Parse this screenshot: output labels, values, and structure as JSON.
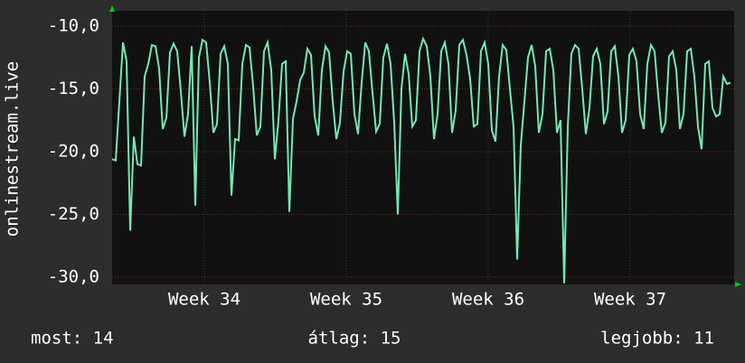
{
  "chart_data": {
    "type": "line",
    "y_label": "onlinestream.live",
    "series": [
      {
        "name": "onlinestream.live",
        "color": "#74e8b4",
        "values": [
          -20.6,
          -20.7,
          -16.0,
          -11.3,
          -12.8,
          -26.3,
          -18.8,
          -21.0,
          -21.1,
          -14.0,
          -13.0,
          -11.5,
          -11.6,
          -13.4,
          -18.2,
          -17.3,
          -12.1,
          -11.4,
          -12.0,
          -15.2,
          -18.8,
          -17.0,
          -11.6,
          -24.3,
          -12.5,
          -11.1,
          -11.3,
          -14.5,
          -18.5,
          -17.8,
          -12.2,
          -11.6,
          -13.0,
          -23.5,
          -19.0,
          -19.1,
          -13.0,
          -11.5,
          -11.7,
          -14.8,
          -18.7,
          -18.0,
          -12.0,
          -11.3,
          -13.5,
          -20.6,
          -17.5,
          -13.0,
          -12.8,
          -24.8,
          -17.4,
          -16.0,
          -14.3,
          -13.7,
          -11.8,
          -12.3,
          -17.2,
          -18.7,
          -13.5,
          -11.6,
          -12.1,
          -16.0,
          -19.0,
          -17.7,
          -13.6,
          -12.0,
          -12.2,
          -17.0,
          -18.6,
          -14.5,
          -11.3,
          -12.0,
          -15.3,
          -18.4,
          -17.8,
          -12.5,
          -11.4,
          -13.0,
          -17.7,
          -25.0,
          -15.0,
          -12.2,
          -13.8,
          -18.0,
          -17.5,
          -12.0,
          -11.0,
          -11.6,
          -14.0,
          -19.0,
          -17.0,
          -12.0,
          -11.3,
          -13.0,
          -18.5,
          -16.7,
          -11.5,
          -11.1,
          -12.3,
          -14.2,
          -18.0,
          -17.8,
          -12.0,
          -11.3,
          -13.0,
          -18.3,
          -19.2,
          -14.0,
          -11.5,
          -11.9,
          -15.0,
          -18.0,
          -28.6,
          -19.5,
          -16.0,
          -12.5,
          -11.5,
          -13.2,
          -18.5,
          -17.0,
          -12.0,
          -11.8,
          -13.5,
          -18.5,
          -17.5,
          -30.5,
          -18.0,
          -12.2,
          -11.5,
          -11.8,
          -15.0,
          -18.6,
          -16.5,
          -12.4,
          -11.8,
          -13.0,
          -17.8,
          -16.8,
          -12.0,
          -11.6,
          -14.0,
          -18.5,
          -17.5,
          -12.3,
          -11.8,
          -12.8,
          -17.0,
          -18.2,
          -13.0,
          -11.5,
          -12.0,
          -15.5,
          -18.5,
          -17.7,
          -12.4,
          -12.0,
          -13.5,
          -18.2,
          -17.0,
          -12.0,
          -11.8,
          -14.0,
          -18.0,
          -19.8,
          -13.0,
          -12.8,
          -16.5,
          -17.2,
          -17.0,
          -14.0,
          -14.6,
          -14.5
        ]
      }
    ],
    "xlim": [
      0,
      172
    ],
    "xticks": [
      {
        "value": 25.5,
        "label": "Week 34"
      },
      {
        "value": 64.75,
        "label": "Week 35"
      },
      {
        "value": 104,
        "label": "Week 36"
      },
      {
        "value": 143.25,
        "label": "Week 37"
      }
    ],
    "ylim": [
      -30.58,
      -8.78
    ],
    "yticks": [
      {
        "value": -30,
        "label": "-30,0"
      },
      {
        "value": -25,
        "label": "-25,0"
      },
      {
        "value": -20,
        "label": "-20,0"
      },
      {
        "value": -15,
        "label": "-15,0"
      },
      {
        "value": -10,
        "label": "-10,0"
      }
    ],
    "grid": true,
    "stats": [
      "most: 14",
      "átlag: 15",
      "legjobb: 11"
    ]
  }
}
